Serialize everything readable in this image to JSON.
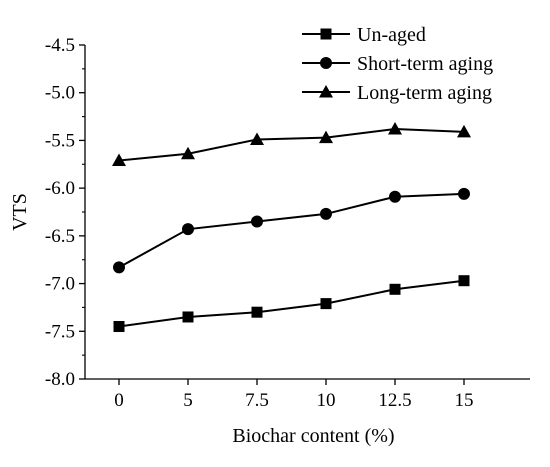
{
  "chart_data": {
    "type": "line",
    "title": "",
    "xlabel": "Biochar content (%)",
    "ylabel": "VTS",
    "categories": [
      "0",
      "5",
      "7.5",
      "10",
      "12.5",
      "15"
    ],
    "ylim": [
      -8.0,
      -4.5
    ],
    "yticks": [
      "-4.5",
      "-5.0",
      "-5.5",
      "-6.0",
      "-6.5",
      "-7.0",
      "-7.5",
      "-8.0"
    ],
    "grid": false,
    "legend_position": "top-right",
    "series": [
      {
        "name": "Un-aged",
        "marker": "square",
        "values": [
          -7.45,
          -7.35,
          -7.3,
          -7.21,
          -7.06,
          -6.97
        ]
      },
      {
        "name": "Short-term aging",
        "marker": "circle",
        "values": [
          -6.83,
          -6.43,
          -6.35,
          -6.27,
          -6.09,
          -6.06
        ]
      },
      {
        "name": "Long-term aging",
        "marker": "triangle",
        "values": [
          -5.71,
          -5.64,
          -5.49,
          -5.47,
          -5.38,
          -5.41
        ]
      }
    ],
    "colors": {
      "line": "#000000",
      "marker": "#000000",
      "axis": "#000000"
    }
  }
}
